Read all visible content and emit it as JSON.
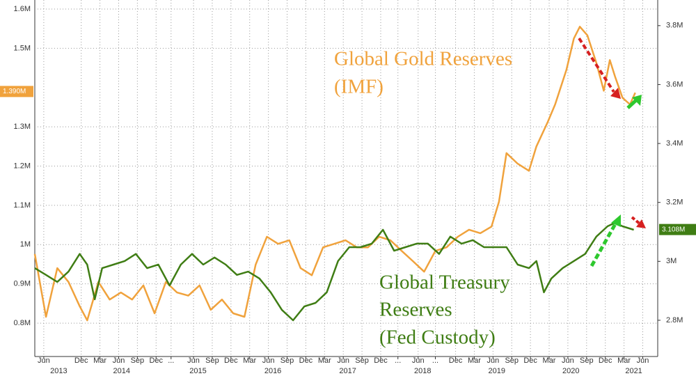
{
  "chart_data": {
    "type": "line",
    "annotations": [
      {
        "lines": [
          "Global Gold Reserves",
          "(IMF)"
        ],
        "color": "#f0a23c"
      },
      {
        "lines": [
          "Global Treasury",
          "Reserves",
          "(Fed Custody)"
        ],
        "color": "#3f7d14"
      }
    ],
    "xlim": [
      2013.3,
      2021.62
    ],
    "xticks": [
      {
        "value": 2013.42,
        "label": "Jun"
      },
      {
        "value": 2013.92,
        "label": "Dec"
      },
      {
        "value": 2014.17,
        "label": "Mar"
      },
      {
        "value": 2014.42,
        "label": "Jun"
      },
      {
        "value": 2014.67,
        "label": "Sep"
      },
      {
        "value": 2014.92,
        "label": "Dec"
      },
      {
        "value": 2015.12,
        "label": "..."
      },
      {
        "value": 2015.42,
        "label": "Jun"
      },
      {
        "value": 2015.67,
        "label": "Sep"
      },
      {
        "value": 2015.92,
        "label": "Dec"
      },
      {
        "value": 2016.17,
        "label": "Mar"
      },
      {
        "value": 2016.42,
        "label": "Jun"
      },
      {
        "value": 2016.67,
        "label": "Sep"
      },
      {
        "value": 2016.92,
        "label": "Dec"
      },
      {
        "value": 2017.17,
        "label": "Mar"
      },
      {
        "value": 2017.42,
        "label": "Jun"
      },
      {
        "value": 2017.67,
        "label": "Sep"
      },
      {
        "value": 2017.92,
        "label": "Dec"
      },
      {
        "value": 2018.15,
        "label": "..."
      },
      {
        "value": 2018.42,
        "label": "Jun"
      },
      {
        "value": 2018.65,
        "label": "..."
      },
      {
        "value": 2018.92,
        "label": "Dec"
      },
      {
        "value": 2019.17,
        "label": "Mar"
      },
      {
        "value": 2019.42,
        "label": "Jun"
      },
      {
        "value": 2019.67,
        "label": "Sep"
      },
      {
        "value": 2019.92,
        "label": "Dec"
      },
      {
        "value": 2020.17,
        "label": "Mar"
      },
      {
        "value": 2020.42,
        "label": "Jun"
      },
      {
        "value": 2020.67,
        "label": "Sep"
      },
      {
        "value": 2020.92,
        "label": "Dec"
      },
      {
        "value": 2021.17,
        "label": "Mar"
      },
      {
        "value": 2021.42,
        "label": "Jun"
      }
    ],
    "x_year_labels": [
      {
        "value": 2013.62,
        "label": "2013"
      },
      {
        "value": 2014.46,
        "label": "2014"
      },
      {
        "value": 2015.48,
        "label": "2015"
      },
      {
        "value": 2016.48,
        "label": "2016"
      },
      {
        "value": 2017.48,
        "label": "2017"
      },
      {
        "value": 2018.48,
        "label": "2018"
      },
      {
        "value": 2019.47,
        "label": "2019"
      },
      {
        "value": 2020.46,
        "label": "2020"
      },
      {
        "value": 2021.3,
        "label": "2021"
      }
    ],
    "ylim": [
      0.715,
      1.623
    ],
    "yticks": [
      {
        "value": 0.8,
        "label": "0.8M"
      },
      {
        "value": 0.9,
        "label": "0.9M"
      },
      {
        "value": 1.0,
        "label": "1M"
      },
      {
        "value": 1.1,
        "label": "1.1M"
      },
      {
        "value": 1.2,
        "label": "1.2M"
      },
      {
        "value": 1.3,
        "label": "1.3M"
      },
      {
        "value": 1.5,
        "label": "1.5M"
      },
      {
        "value": 1.6,
        "label": "1.6M"
      }
    ],
    "y2lim": [
      2.677,
      3.887
    ],
    "y2ticks": [
      {
        "value": 2.8,
        "label": "2.8M"
      },
      {
        "value": 3.0,
        "label": "3M"
      },
      {
        "value": 3.2,
        "label": "3.2M"
      },
      {
        "value": 3.4,
        "label": "3.4M"
      },
      {
        "value": 3.6,
        "label": "3.6M"
      },
      {
        "value": 3.8,
        "label": "3.8M"
      }
    ],
    "grid": true,
    "series": [
      {
        "name": "Global Gold Reserves (IMF)",
        "color": "#f0a23c",
        "axis": "y",
        "tag": {
          "value": 1.39,
          "label": "1.390M"
        },
        "x": [
          2013.3,
          2013.45,
          2013.6,
          2013.75,
          2013.9,
          2014.0,
          2014.15,
          2014.3,
          2014.45,
          2014.6,
          2014.75,
          2014.9,
          2015.05,
          2015.2,
          2015.35,
          2015.5,
          2015.65,
          2015.8,
          2015.95,
          2016.1,
          2016.25,
          2016.4,
          2016.55,
          2016.7,
          2016.85,
          2017.0,
          2017.15,
          2017.3,
          2017.45,
          2017.6,
          2017.75,
          2017.9,
          2018.05,
          2018.2,
          2018.35,
          2018.5,
          2018.65,
          2018.8,
          2018.95,
          2019.1,
          2019.25,
          2019.4,
          2019.5,
          2019.6,
          2019.75,
          2019.9,
          2020.0,
          2020.15,
          2020.25,
          2020.4,
          2020.5,
          2020.58,
          2020.68,
          2020.8,
          2020.9,
          2020.98,
          2021.05,
          2021.15,
          2021.25,
          2021.32
        ],
        "values": [
          0.976,
          0.816,
          0.94,
          0.905,
          0.843,
          0.807,
          0.905,
          0.86,
          0.878,
          0.86,
          0.896,
          0.825,
          0.905,
          0.878,
          0.87,
          0.896,
          0.834,
          0.86,
          0.825,
          0.816,
          0.949,
          1.02,
          1.002,
          1.011,
          0.94,
          0.922,
          0.993,
          1.002,
          1.011,
          0.993,
          0.993,
          1.02,
          1.011,
          0.984,
          0.958,
          0.931,
          0.984,
          0.993,
          1.02,
          1.038,
          1.029,
          1.046,
          1.109,
          1.233,
          1.206,
          1.188,
          1.25,
          1.312,
          1.357,
          1.445,
          1.525,
          1.555,
          1.533,
          1.463,
          1.392,
          1.47,
          1.428,
          1.374,
          1.357,
          1.387
        ]
      },
      {
        "name": "Global Treasury Reserves (Fed Custody)",
        "color": "#3f7d14",
        "axis": "y2",
        "tag": {
          "value": 3.108,
          "label": "3.108M"
        },
        "x": [
          2013.3,
          2013.45,
          2013.6,
          2013.75,
          2013.9,
          2014.0,
          2014.1,
          2014.2,
          2014.35,
          2014.5,
          2014.65,
          2014.8,
          2014.95,
          2015.1,
          2015.25,
          2015.4,
          2015.55,
          2015.7,
          2015.85,
          2016.0,
          2016.15,
          2016.3,
          2016.45,
          2016.6,
          2016.75,
          2016.9,
          2017.05,
          2017.2,
          2017.35,
          2017.5,
          2017.65,
          2017.8,
          2017.95,
          2018.1,
          2018.25,
          2018.4,
          2018.55,
          2018.7,
          2018.85,
          2019.0,
          2019.15,
          2019.3,
          2019.45,
          2019.6,
          2019.75,
          2019.9,
          2020.0,
          2020.1,
          2020.2,
          2020.35,
          2020.5,
          2020.65,
          2020.8,
          2020.95,
          2021.05,
          2021.15,
          2021.3
        ],
        "values": [
          2.977,
          2.954,
          2.93,
          2.965,
          3.025,
          2.989,
          2.871,
          2.977,
          2.989,
          3.001,
          3.025,
          2.977,
          2.989,
          2.918,
          2.989,
          3.025,
          2.989,
          3.013,
          2.989,
          2.954,
          2.965,
          2.942,
          2.895,
          2.835,
          2.8,
          2.847,
          2.859,
          2.895,
          3.001,
          3.048,
          3.048,
          3.06,
          3.107,
          3.036,
          3.048,
          3.06,
          3.06,
          3.025,
          3.084,
          3.06,
          3.072,
          3.048,
          3.048,
          3.048,
          2.989,
          2.977,
          3.001,
          2.895,
          2.942,
          2.977,
          3.001,
          3.025,
          3.084,
          3.119,
          3.131,
          3.119,
          3.107
        ]
      }
    ]
  }
}
